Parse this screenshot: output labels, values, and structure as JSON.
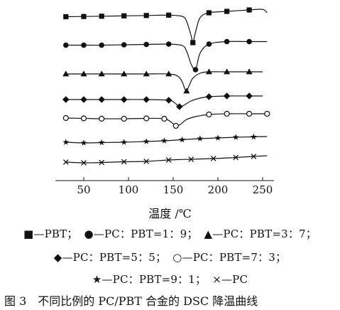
{
  "chart_data": {
    "type": "line",
    "xlabel": "温度 /℃",
    "xticks": [
      50,
      100,
      150,
      200,
      250
    ],
    "xlim": [
      25,
      260
    ],
    "series": [
      {
        "name": "PBT",
        "marker": "square",
        "x": [
          30,
          50,
          70,
          95,
          120,
          145,
          160,
          165,
          170,
          172,
          175,
          180,
          190,
          210,
          235,
          250,
          255
        ],
        "y": [
          23.5,
          23.2,
          22.8,
          22.3,
          21.8,
          21.3,
          23,
          30,
          50,
          60,
          45,
          25,
          18,
          16,
          14,
          13.2,
          18
        ],
        "marker_x": [
          30,
          50,
          70,
          95,
          120,
          145,
          172,
          190,
          210,
          235
        ]
      },
      {
        "name": "PC：PBT=1：9",
        "marker": "circle",
        "x": [
          30,
          50,
          70,
          95,
          120,
          145,
          160,
          165,
          170,
          175,
          180,
          190,
          210,
          235,
          255
        ],
        "y": [
          63.5,
          63.5,
          63.5,
          63,
          62.5,
          62,
          64,
          72,
          90,
          98,
          75,
          62,
          58.5,
          58.5,
          58.5
        ],
        "marker_x": [
          30,
          50,
          70,
          95,
          120,
          145,
          175,
          190,
          210,
          235
        ]
      },
      {
        "name": "PC：PBT=3：7",
        "marker": "triangle",
        "x": [
          30,
          50,
          70,
          95,
          120,
          145,
          155,
          160,
          163,
          165,
          168,
          172,
          180,
          190,
          210,
          235,
          250
        ],
        "y": [
          104,
          104,
          104,
          104,
          104,
          104,
          107,
          115,
          125,
          128,
          120,
          110,
          103,
          101,
          101,
          101,
          101
        ],
        "marker_x": [
          30,
          50,
          70,
          95,
          120,
          145,
          165,
          190,
          210,
          235
        ]
      },
      {
        "name": "PC：PBT=5：5",
        "marker": "diamond",
        "x": [
          30,
          50,
          70,
          95,
          120,
          145,
          152,
          157,
          162,
          170,
          180,
          190,
          210,
          235,
          250
        ],
        "y": [
          140,
          140,
          140,
          140,
          140,
          141,
          145,
          150,
          148,
          142,
          138,
          136,
          135,
          135,
          135
        ],
        "marker_x": [
          30,
          50,
          70,
          95,
          120,
          145,
          157,
          190,
          210,
          235
        ]
      },
      {
        "name": "PC：PBT=7：3",
        "marker": "open-circle",
        "x": [
          30,
          50,
          70,
          95,
          120,
          140,
          148,
          153,
          158,
          165,
          175,
          190,
          210,
          235,
          255
        ],
        "y": [
          166,
          166.5,
          167,
          167,
          166.5,
          167,
          172,
          177,
          175,
          168,
          164,
          161,
          160,
          160,
          160
        ],
        "marker_x": [
          30,
          50,
          70,
          95,
          120,
          140,
          153,
          190,
          210,
          235,
          255
        ]
      },
      {
        "name": "PC：PBT=9：1",
        "marker": "star",
        "x": [
          30,
          50,
          70,
          95,
          120,
          140,
          160,
          180,
          200,
          220,
          240,
          255
        ],
        "y": [
          200,
          201,
          200.5,
          200,
          199,
          198,
          196.5,
          195,
          194,
          193,
          192.5,
          192
        ],
        "marker_x": [
          30,
          50,
          70,
          95,
          120,
          140,
          160,
          180,
          200,
          220,
          240
        ]
      },
      {
        "name": "PC",
        "marker": "cross",
        "x": [
          30,
          50,
          70,
          95,
          120,
          145,
          170,
          195,
          220,
          240,
          255
        ],
        "y": [
          228,
          229,
          228.5,
          227.5,
          227,
          225,
          224,
          223,
          221.5,
          220,
          219
        ],
        "marker_x": [
          30,
          50,
          70,
          95,
          120,
          145,
          170,
          195,
          220,
          240
        ]
      }
    ]
  },
  "legend": {
    "line1": [
      "■—PBT；",
      "●—PC：PBT=1：9；",
      "▲—PC：PBT=3：7；"
    ],
    "line2": [
      "◆—PC：PBT=5：5；",
      "○—PC：PBT=7：3；"
    ],
    "line3": [
      "★—PC：PBT=9：1；",
      "×—PC"
    ]
  },
  "caption": "图 3　不同比例的 PC/PBT 合金的 DSC 降温曲线"
}
